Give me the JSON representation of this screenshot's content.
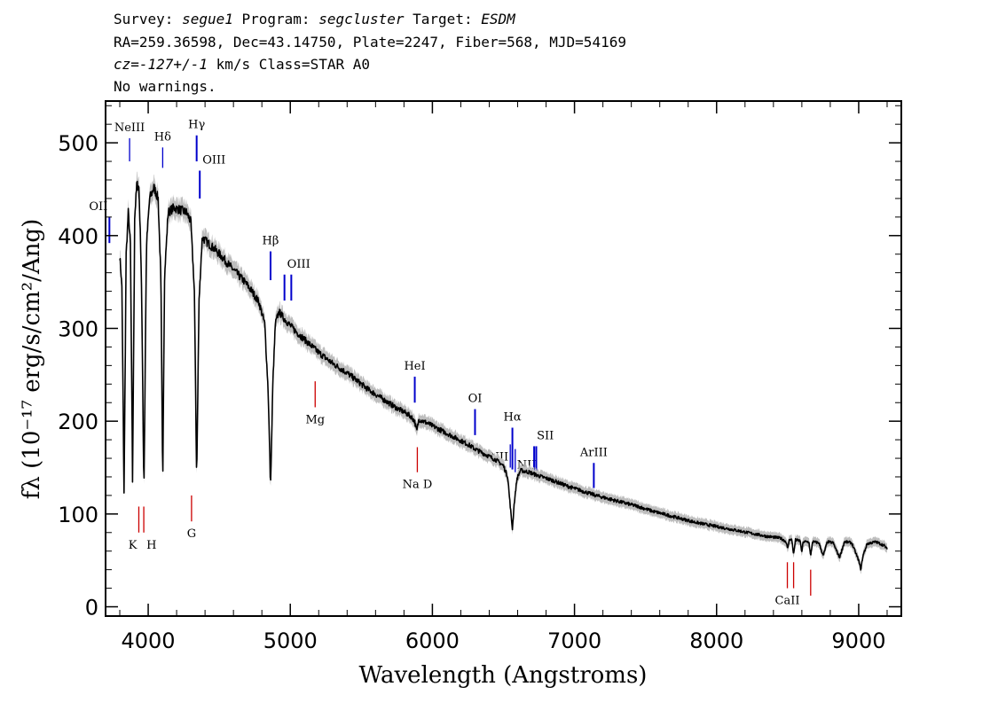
{
  "header": {
    "line1": {
      "survey_label": "Survey: ",
      "survey": "segue1",
      "program_label": " Program: ",
      "program": "segcluster",
      "target_label": " Target: ",
      "target": "ESDM"
    },
    "line2": "RA=259.36598, Dec=43.14750, Plate=2247, Fiber=568, MJD=54169",
    "line3": {
      "cz": "cz=-127+/-1",
      "rest": " km/s Class=STAR A0"
    },
    "line4": "No warnings."
  },
  "chart_data": {
    "type": "line",
    "xlabel": "Wavelength (Angstroms)",
    "ylabel": "fλ (10⁻¹⁷ erg/s/cm²/Ang)",
    "xlim": [
      3700,
      9300
    ],
    "ylim": [
      -10,
      545
    ],
    "x_ticks": [
      4000,
      5000,
      6000,
      7000,
      8000,
      9000
    ],
    "y_ticks": [
      0,
      100,
      200,
      300,
      400,
      500
    ],
    "colors": {
      "flux": "#000000",
      "error": "#bdbdbd",
      "emission": "#0000cc",
      "absorption": "#cc0000"
    },
    "series": [
      {
        "points": [
          [
            3800,
            378
          ],
          [
            3815,
            345
          ],
          [
            3830,
            122
          ],
          [
            3845,
            380
          ],
          [
            3860,
            425
          ],
          [
            3875,
            390
          ],
          [
            3890,
            135
          ],
          [
            3905,
            420
          ],
          [
            3920,
            455
          ],
          [
            3935,
            452
          ],
          [
            3952,
            360
          ],
          [
            3970,
            125
          ],
          [
            3988,
            390
          ],
          [
            4010,
            440
          ],
          [
            4040,
            452
          ],
          [
            4070,
            440
          ],
          [
            4090,
            350
          ],
          [
            4102,
            130
          ],
          [
            4115,
            355
          ],
          [
            4140,
            425
          ],
          [
            4180,
            430
          ],
          [
            4220,
            428
          ],
          [
            4270,
            425
          ],
          [
            4300,
            415
          ],
          [
            4325,
            340
          ],
          [
            4341,
            138
          ],
          [
            4358,
            330
          ],
          [
            4380,
            398
          ],
          [
            4420,
            392
          ],
          [
            4470,
            385
          ],
          [
            4520,
            377
          ],
          [
            4570,
            368
          ],
          [
            4620,
            360
          ],
          [
            4680,
            350
          ],
          [
            4730,
            340
          ],
          [
            4780,
            328
          ],
          [
            4820,
            305
          ],
          [
            4845,
            230
          ],
          [
            4861,
            128
          ],
          [
            4878,
            245
          ],
          [
            4895,
            305
          ],
          [
            4920,
            318
          ],
          [
            4960,
            310
          ],
          [
            5000,
            303
          ],
          [
            5050,
            295
          ],
          [
            5100,
            288
          ],
          [
            5150,
            281
          ],
          [
            5200,
            274
          ],
          [
            5250,
            268
          ],
          [
            5300,
            262
          ],
          [
            5350,
            257
          ],
          [
            5400,
            252
          ],
          [
            5450,
            246
          ],
          [
            5500,
            240
          ],
          [
            5550,
            234
          ],
          [
            5600,
            229
          ],
          [
            5650,
            224
          ],
          [
            5700,
            219
          ],
          [
            5750,
            214
          ],
          [
            5800,
            210
          ],
          [
            5850,
            205
          ],
          [
            5875,
            200
          ],
          [
            5890,
            189
          ],
          [
            5905,
            202
          ],
          [
            5950,
            199
          ],
          [
            6000,
            195
          ],
          [
            6050,
            191
          ],
          [
            6100,
            187
          ],
          [
            6150,
            183
          ],
          [
            6200,
            179
          ],
          [
            6250,
            175
          ],
          [
            6300,
            170
          ],
          [
            6350,
            166
          ],
          [
            6400,
            162
          ],
          [
            6450,
            158
          ],
          [
            6500,
            152
          ],
          [
            6530,
            140
          ],
          [
            6550,
            105
          ],
          [
            6563,
            84
          ],
          [
            6575,
            110
          ],
          [
            6595,
            138
          ],
          [
            6620,
            147
          ],
          [
            6680,
            145
          ],
          [
            6750,
            141
          ],
          [
            6850,
            136
          ],
          [
            6950,
            130
          ],
          [
            7050,
            125
          ],
          [
            7150,
            120
          ],
          [
            7250,
            116
          ],
          [
            7350,
            112
          ],
          [
            7450,
            108
          ],
          [
            7550,
            103
          ],
          [
            7650,
            99
          ],
          [
            7750,
            95
          ],
          [
            7850,
            91
          ],
          [
            7950,
            88
          ],
          [
            8050,
            85
          ],
          [
            8150,
            82
          ],
          [
            8250,
            79
          ],
          [
            8350,
            76
          ],
          [
            8450,
            74
          ],
          [
            8490,
            70
          ],
          [
            8500,
            62
          ],
          [
            8512,
            73
          ],
          [
            8530,
            72
          ],
          [
            8542,
            56
          ],
          [
            8555,
            72
          ],
          [
            8590,
            71
          ],
          [
            8598,
            58
          ],
          [
            8610,
            70
          ],
          [
            8650,
            70
          ],
          [
            8662,
            54
          ],
          [
            8675,
            70
          ],
          [
            8720,
            69
          ],
          [
            8750,
            55
          ],
          [
            8780,
            70
          ],
          [
            8820,
            69
          ],
          [
            8865,
            53
          ],
          [
            8900,
            70
          ],
          [
            8950,
            69
          ],
          [
            9000,
            50
          ],
          [
            9015,
            40
          ],
          [
            9030,
            55
          ],
          [
            9060,
            68
          ],
          [
            9120,
            70
          ],
          [
            9180,
            66
          ],
          [
            9200,
            62
          ]
        ]
      }
    ],
    "lines": [
      {
        "name": "NeIII",
        "wave": 3869,
        "type": "em",
        "ytop": 505,
        "ybot": 480,
        "label_pos": "above"
      },
      {
        "name": "Hδ",
        "wave": 4102,
        "type": "em",
        "ytop": 495,
        "ybot": 473,
        "label_pos": "above"
      },
      {
        "name": "Hγ",
        "wave": 4341,
        "type": "em",
        "ytop": 508,
        "ybot": 480,
        "label_pos": "above"
      },
      {
        "name": "OIII",
        "wave": 4363,
        "type": "em",
        "ytop": 470,
        "ybot": 440,
        "label_pos": "above-right"
      },
      {
        "name": "OII",
        "wave": 3727,
        "type": "em",
        "ytop": 420,
        "ybot": 392,
        "label_pos": "above-left"
      },
      {
        "name": "Hβ",
        "wave": 4861,
        "type": "em",
        "ytop": 383,
        "ybot": 352,
        "label_pos": "above"
      },
      {
        "name": "OIII",
        "wave": 4959,
        "type": "em",
        "ytop": 358,
        "ybot": 330,
        "label_pos": "above-right"
      },
      {
        "name": "",
        "wave": 5007,
        "type": "em",
        "ytop": 358,
        "ybot": 330,
        "label_pos": "none"
      },
      {
        "name": "HeI",
        "wave": 5876,
        "type": "em",
        "ytop": 248,
        "ybot": 220,
        "label_pos": "above"
      },
      {
        "name": "OI",
        "wave": 6300,
        "type": "em",
        "ytop": 213,
        "ybot": 185,
        "label_pos": "above"
      },
      {
        "name": "NII",
        "wave": 6548,
        "type": "em",
        "ytop": 175,
        "ybot": 150,
        "label_pos": "left"
      },
      {
        "name": "Hα",
        "wave": 6563,
        "type": "em",
        "ytop": 193,
        "ybot": 148,
        "label_pos": "above"
      },
      {
        "name": "NII",
        "wave": 6583,
        "type": "em",
        "ytop": 170,
        "ybot": 145,
        "label_pos": "right"
      },
      {
        "name": "SII",
        "wave": 6716,
        "type": "em",
        "ytop": 173,
        "ybot": 145,
        "label_pos": "above-right"
      },
      {
        "name": "",
        "wave": 6731,
        "type": "em",
        "ytop": 173,
        "ybot": 145,
        "label_pos": "none"
      },
      {
        "name": "ArIII",
        "wave": 7136,
        "type": "em",
        "ytop": 155,
        "ybot": 128,
        "label_pos": "above"
      },
      {
        "name": "Mg",
        "wave": 5175,
        "type": "abs",
        "ytop": 243,
        "ybot": 215,
        "label_pos": "below"
      },
      {
        "name": "Na D",
        "wave": 5894,
        "type": "abs",
        "ytop": 172,
        "ybot": 145,
        "label_pos": "below"
      },
      {
        "name": "K",
        "wave": 3934,
        "type": "abs",
        "ytop": 108,
        "ybot": 80,
        "label_pos": "below-left"
      },
      {
        "name": "H",
        "wave": 3969,
        "type": "abs",
        "ytop": 108,
        "ybot": 80,
        "label_pos": "below-right"
      },
      {
        "name": "G",
        "wave": 4305,
        "type": "abs",
        "ytop": 120,
        "ybot": 92,
        "label_pos": "below"
      },
      {
        "name": "CaII",
        "wave": 8498,
        "type": "abs",
        "ytop": 48,
        "ybot": 20,
        "label_pos": "below"
      },
      {
        "name": "",
        "wave": 8542,
        "type": "abs",
        "ytop": 48,
        "ybot": 20,
        "label_pos": "none"
      },
      {
        "name": "",
        "wave": 8662,
        "type": "abs",
        "ytop": 40,
        "ybot": 12,
        "label_pos": "none"
      }
    ]
  }
}
